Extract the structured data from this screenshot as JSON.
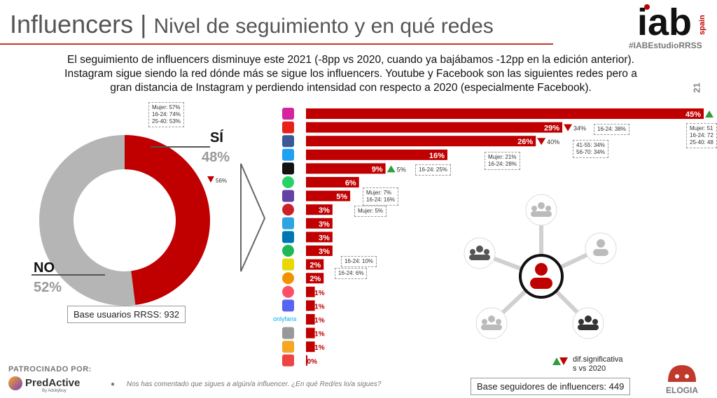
{
  "header": {
    "title": "Influencers",
    "separator": "|",
    "subtitle": "Nivel de seguimiento y en qué redes",
    "logo_text": "iab",
    "logo_country": "spain",
    "hashtag": "#IABEstudioRRSS",
    "year_fragment": "21"
  },
  "intro_lines": [
    "El seguimiento de influencers disminuye este 2021 (-8pp vs 2020, cuando ya bajábamos -12pp en la edición anterior).",
    "Instagram sigue siendo la red dónde más se sigue los influencers. Youtube y Facebook son las siguientes redes pero a",
    "gran distancia de Instagram y perdiendo intensidad con respecto a 2020 (especialmente Facebook)."
  ],
  "colors": {
    "red": "#c00000",
    "grey": "#b5b5b5",
    "green": "#2e9e3a",
    "accent": "#c0392b"
  },
  "chart_data": [
    {
      "type": "pie",
      "categories": [
        "SÍ",
        "NO"
      ],
      "values": [
        48,
        52
      ],
      "value_labels": [
        "48%",
        "52%"
      ],
      "change_si": "56%",
      "note_si": [
        "Mujer: 57%",
        "16-24: 74%",
        "25-40: 53%"
      ],
      "base": "Base usuarios RRSS: 932"
    },
    {
      "type": "bar",
      "orientation": "horizontal",
      "categories": [
        "instagram-icon",
        "youtube-icon",
        "facebook-icon",
        "twitter-icon",
        "tiktok-icon",
        "whatsapp-icon",
        "twitch-icon",
        "pinterest-icon",
        "telegram-icon",
        "linkedin-icon",
        "spotify-icon",
        "snapchat-icon",
        "ivoox-icon",
        "tinder-icon",
        "discord-icon",
        "onlyfans-icon",
        "waze-icon",
        "podcast-icon",
        "tumblr-icon"
      ],
      "values": [
        45,
        29,
        26,
        16,
        9,
        6,
        5,
        3,
        3,
        3,
        3,
        2,
        2,
        1,
        1,
        1,
        1,
        1,
        0
      ],
      "value_labels": [
        "45%",
        "29%",
        "26%",
        "16%",
        "9%",
        "6%",
        "5%",
        "3%",
        "3%",
        "3%",
        "3%",
        "2%",
        "2%",
        "1%",
        "1%",
        "1%",
        "1%",
        "1%",
        "0%"
      ],
      "xlim": [
        0,
        45
      ],
      "changes": [
        {
          "row": 0,
          "dir": "up",
          "text": ""
        },
        {
          "row": 1,
          "dir": "down",
          "text": "34%"
        },
        {
          "row": 2,
          "dir": "down",
          "text": "40%"
        },
        {
          "row": 4,
          "dir": "up",
          "text": "5%"
        }
      ],
      "notes": [
        {
          "row": 0,
          "lines": [
            "Mujer: 51",
            "16-24: 72",
            "25-40: 48"
          ]
        },
        {
          "row": 1,
          "lines": [
            "16-24: 38%"
          ]
        },
        {
          "row": 2,
          "lines": [
            "41-55: 34%",
            "56-70: 34%"
          ]
        },
        {
          "row": 3,
          "lines": [
            "Mujer: 21%",
            "16-24: 28%"
          ]
        },
        {
          "row": 4,
          "lines": [
            "16-24: 25%"
          ]
        },
        {
          "row": 6,
          "lines": [
            "Mujer: 7%",
            "16-24: 16%"
          ]
        },
        {
          "row": 7,
          "lines": [
            "Mujer: 5%"
          ]
        },
        {
          "row": 11,
          "lines": [
            "16-24: 10%"
          ]
        },
        {
          "row": 12,
          "lines": [
            "16-24: 6%"
          ]
        }
      ],
      "base": "Base seguidores de influencers: 449",
      "onlyfans_label": "onlyfans"
    }
  ],
  "legend": {
    "text": "dif.significativa s vs 2020"
  },
  "sponsor": {
    "label": "PATROCINADO POR:",
    "name": "PredActive",
    "by": "By Adsbybuy"
  },
  "footnote": "Nos has comentado que sigues a algún/a influencer. ¿En qué Red/es lo/a sigues?",
  "partner": {
    "name": "ELOGIA"
  }
}
